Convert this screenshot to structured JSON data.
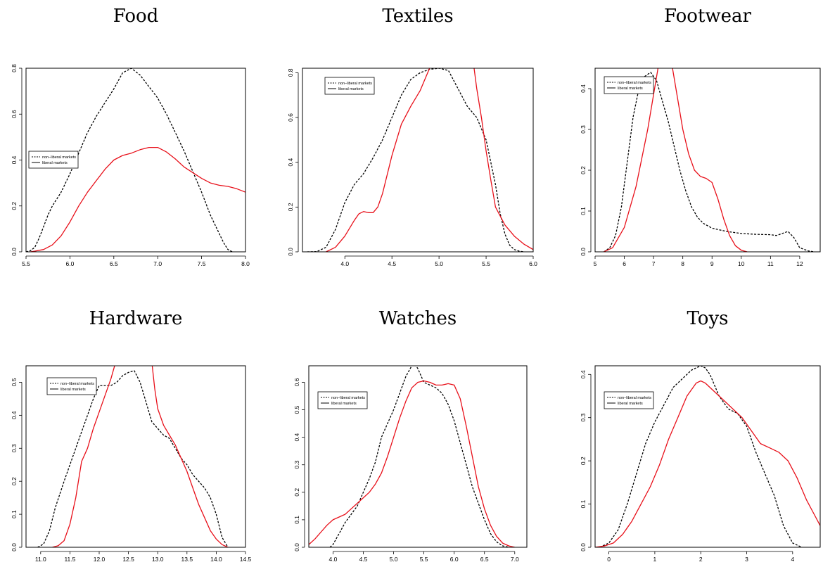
{
  "chart_data": [
    {
      "type": "line",
      "title": "Food",
      "xlim": [
        5.5,
        8.0
      ],
      "ylim": [
        0.0,
        0.8
      ],
      "xticks": [
        "5.5",
        "6.0",
        "6.5",
        "7.0",
        "7.5",
        "8.0"
      ],
      "yticks": [
        "0.0",
        "0.2",
        "0.4",
        "0.6",
        "0.8"
      ],
      "legend": {
        "placement": "left",
        "entries": [
          "non–liberal markets",
          "liberal markets"
        ]
      },
      "series": [
        {
          "name": "non–liberal markets",
          "color": "#000000",
          "dash": true,
          "x": [
            5.5,
            5.55,
            5.6,
            5.65,
            5.7,
            5.75,
            5.8,
            5.9,
            6.0,
            6.1,
            6.2,
            6.3,
            6.4,
            6.5,
            6.6,
            6.7,
            6.8,
            6.9,
            7.0,
            7.1,
            7.2,
            7.3,
            7.4,
            7.5,
            7.6,
            7.7,
            7.75,
            7.8,
            7.85
          ],
          "y": [
            0.0,
            0.005,
            0.02,
            0.06,
            0.11,
            0.16,
            0.2,
            0.26,
            0.34,
            0.43,
            0.52,
            0.59,
            0.65,
            0.71,
            0.78,
            0.8,
            0.77,
            0.72,
            0.67,
            0.6,
            0.52,
            0.44,
            0.35,
            0.26,
            0.16,
            0.08,
            0.04,
            0.01,
            0.0
          ]
        },
        {
          "name": "liberal markets",
          "color": "#e8101a",
          "dash": false,
          "x": [
            5.55,
            5.6,
            5.7,
            5.8,
            5.9,
            6.0,
            6.1,
            6.2,
            6.3,
            6.4,
            6.5,
            6.6,
            6.7,
            6.8,
            6.9,
            7.0,
            7.1,
            7.2,
            7.3,
            7.4,
            7.5,
            7.6,
            7.7,
            7.8,
            7.9,
            8.0
          ],
          "y": [
            0.0,
            0.003,
            0.01,
            0.03,
            0.07,
            0.13,
            0.2,
            0.26,
            0.31,
            0.36,
            0.4,
            0.42,
            0.43,
            0.445,
            0.455,
            0.455,
            0.435,
            0.405,
            0.37,
            0.345,
            0.32,
            0.3,
            0.29,
            0.285,
            0.275,
            0.26
          ]
        }
      ]
    },
    {
      "type": "line",
      "title": "Textiles",
      "xlim": [
        3.55,
        6.0
      ],
      "ylim": [
        0.0,
        0.82
      ],
      "xticks": [
        "4.0",
        "4.5",
        "5.0",
        "5.5",
        "6.0"
      ],
      "yticks": [
        "0.0",
        "0.2",
        "0.4",
        "0.6",
        "0.8"
      ],
      "legend": {
        "placement": "top-left",
        "entries": [
          "non–liberal markets",
          "liberal markets"
        ]
      },
      "series": [
        {
          "name": "non–liberal markets",
          "color": "#000000",
          "dash": true,
          "x": [
            3.6,
            3.7,
            3.8,
            3.9,
            4.0,
            4.1,
            4.2,
            4.3,
            4.4,
            4.5,
            4.6,
            4.7,
            4.8,
            4.9,
            5.0,
            5.1,
            5.2,
            5.3,
            5.4,
            5.5,
            5.6,
            5.65,
            5.7,
            5.75,
            5.8,
            5.85,
            5.9
          ],
          "y": [
            0.0,
            0.001,
            0.02,
            0.1,
            0.22,
            0.3,
            0.35,
            0.42,
            0.5,
            0.6,
            0.7,
            0.77,
            0.8,
            0.815,
            0.82,
            0.81,
            0.73,
            0.65,
            0.6,
            0.5,
            0.3,
            0.17,
            0.08,
            0.03,
            0.01,
            0.003,
            0.0
          ]
        },
        {
          "name": "liberal markets",
          "color": "#e8101a",
          "dash": false,
          "x": [
            3.8,
            3.9,
            4.0,
            4.1,
            4.15,
            4.2,
            4.25,
            4.3,
            4.35,
            4.4,
            4.5,
            4.6,
            4.7,
            4.8,
            4.85,
            4.9,
            4.93,
            5.36,
            5.4,
            5.45,
            5.5,
            5.55,
            5.6,
            5.7,
            5.8,
            5.9,
            6.0
          ],
          "y": [
            0.0,
            0.02,
            0.07,
            0.14,
            0.17,
            0.18,
            0.175,
            0.175,
            0.2,
            0.26,
            0.43,
            0.57,
            0.65,
            0.72,
            0.77,
            0.82,
            0.86,
            0.86,
            0.73,
            0.6,
            0.45,
            0.32,
            0.2,
            0.12,
            0.07,
            0.035,
            0.01
          ]
        }
      ]
    },
    {
      "type": "line",
      "title": "Footwear",
      "xlim": [
        5.0,
        12.7
      ],
      "ylim": [
        0.0,
        0.45
      ],
      "xticks": [
        "5",
        "6",
        "7",
        "8",
        "9",
        "10",
        "11",
        "12"
      ],
      "yticks": [
        "0.0",
        "0.1",
        "0.2",
        "0.3",
        "0.4"
      ],
      "legend": {
        "placement": "top-left",
        "entries": [
          "non–liberal markets",
          "liberal markets"
        ]
      },
      "series": [
        {
          "name": "non–liberal markets",
          "color": "#000000",
          "dash": true,
          "x": [
            5.3,
            5.5,
            5.7,
            5.9,
            6.1,
            6.3,
            6.5,
            6.7,
            6.9,
            7.1,
            7.3,
            7.5,
            7.7,
            7.9,
            8.1,
            8.3,
            8.5,
            8.7,
            9.0,
            9.5,
            10.0,
            10.5,
            11.0,
            11.2,
            11.4,
            11.6,
            11.8,
            12.0,
            12.3,
            12.5
          ],
          "y": [
            0.0,
            0.01,
            0.04,
            0.11,
            0.22,
            0.33,
            0.4,
            0.43,
            0.44,
            0.42,
            0.37,
            0.32,
            0.26,
            0.2,
            0.15,
            0.11,
            0.085,
            0.07,
            0.058,
            0.05,
            0.045,
            0.043,
            0.042,
            0.04,
            0.045,
            0.05,
            0.035,
            0.01,
            0.002,
            0.0
          ]
        },
        {
          "name": "liberal markets",
          "color": "#e8101a",
          "dash": false,
          "x": [
            5.3,
            5.6,
            6.0,
            6.4,
            6.8,
            7.2,
            7.6,
            8.0,
            8.2,
            8.4,
            8.6,
            8.8,
            9.0,
            9.2,
            9.4,
            9.6,
            9.8,
            10.0,
            10.2
          ],
          "y": [
            0.0,
            0.01,
            0.06,
            0.16,
            0.3,
            0.47,
            0.47,
            0.3,
            0.24,
            0.2,
            0.185,
            0.18,
            0.17,
            0.13,
            0.08,
            0.04,
            0.015,
            0.004,
            0.0
          ]
        }
      ]
    },
    {
      "type": "line",
      "title": "Hardware",
      "xlim": [
        10.75,
        14.5
      ],
      "ylim": [
        0.0,
        0.55
      ],
      "xticks": [
        "11.0",
        "11.5",
        "12.0",
        "12.5",
        "13.0",
        "13.5",
        "14.0",
        "14.5"
      ],
      "yticks": [
        "0.0",
        "0.1",
        "0.2",
        "0.3",
        "0.4",
        "0.5"
      ],
      "legend": {
        "placement": "top-left",
        "entries": [
          "non–liberal markets",
          "liberal markets"
        ]
      },
      "series": [
        {
          "name": "non–liberal markets",
          "color": "#000000",
          "dash": true,
          "x": [
            10.95,
            11.05,
            11.15,
            11.25,
            11.4,
            11.5,
            11.6,
            11.7,
            11.8,
            11.9,
            12.0,
            12.1,
            12.2,
            12.3,
            12.4,
            12.5,
            12.6,
            12.7,
            12.8,
            12.9,
            13.0,
            13.1,
            13.2,
            13.3,
            13.4,
            13.5,
            13.6,
            13.7,
            13.8,
            13.9,
            14.0,
            14.1,
            14.2
          ],
          "y": [
            0.0,
            0.01,
            0.05,
            0.12,
            0.2,
            0.25,
            0.3,
            0.35,
            0.4,
            0.45,
            0.49,
            0.49,
            0.49,
            0.5,
            0.52,
            0.53,
            0.535,
            0.5,
            0.44,
            0.38,
            0.36,
            0.34,
            0.33,
            0.3,
            0.27,
            0.25,
            0.22,
            0.2,
            0.18,
            0.15,
            0.1,
            0.03,
            0.0
          ]
        },
        {
          "name": "liberal markets",
          "color": "#e8101a",
          "dash": false,
          "x": [
            11.2,
            11.3,
            11.4,
            11.5,
            11.6,
            11.7,
            11.8,
            11.9,
            12.0,
            12.1,
            12.2,
            12.28,
            12.9,
            12.95,
            13.0,
            13.1,
            13.2,
            13.3,
            13.4,
            13.5,
            13.6,
            13.7,
            13.8,
            13.9,
            14.0,
            14.1,
            14.2
          ],
          "y": [
            0.0,
            0.005,
            0.02,
            0.07,
            0.15,
            0.26,
            0.3,
            0.36,
            0.41,
            0.46,
            0.51,
            0.56,
            0.56,
            0.48,
            0.42,
            0.37,
            0.34,
            0.31,
            0.27,
            0.23,
            0.18,
            0.13,
            0.09,
            0.05,
            0.025,
            0.008,
            0.0
          ]
        }
      ]
    },
    {
      "type": "line",
      "title": "Watches",
      "xlim": [
        3.6,
        7.2
      ],
      "ylim": [
        0.0,
        0.66
      ],
      "xticks": [
        "4.0",
        "4.5",
        "5.0",
        "5.5",
        "6.0",
        "6.5",
        "7.0"
      ],
      "yticks": [
        "0.0",
        "0.1",
        "0.2",
        "0.3",
        "0.4",
        "0.5",
        "0.6"
      ],
      "legend": {
        "placement": "top-left",
        "entries": [
          "non–liberal markets",
          "liberal markets"
        ]
      },
      "series": [
        {
          "name": "non–liberal markets",
          "color": "#000000",
          "dash": true,
          "x": [
            3.95,
            4.0,
            4.1,
            4.2,
            4.3,
            4.4,
            4.5,
            4.6,
            4.7,
            4.8,
            4.9,
            5.0,
            5.1,
            5.2,
            5.3,
            5.35,
            5.4,
            5.5,
            5.6,
            5.7,
            5.8,
            5.9,
            6.0,
            6.1,
            6.2,
            6.3,
            6.4,
            6.5,
            6.6,
            6.7,
            6.8,
            6.9
          ],
          "y": [
            0.0,
            0.01,
            0.05,
            0.09,
            0.12,
            0.15,
            0.2,
            0.25,
            0.31,
            0.4,
            0.45,
            0.5,
            0.56,
            0.62,
            0.66,
            0.665,
            0.65,
            0.6,
            0.59,
            0.58,
            0.56,
            0.52,
            0.46,
            0.38,
            0.3,
            0.22,
            0.16,
            0.1,
            0.05,
            0.02,
            0.005,
            0.0
          ]
        },
        {
          "name": "liberal markets",
          "color": "#e8101a",
          "dash": false,
          "x": [
            3.6,
            3.7,
            3.8,
            3.9,
            4.0,
            4.1,
            4.2,
            4.3,
            4.4,
            4.5,
            4.6,
            4.7,
            4.8,
            4.9,
            5.0,
            5.1,
            5.2,
            5.3,
            5.4,
            5.5,
            5.6,
            5.7,
            5.8,
            5.9,
            6.0,
            6.1,
            6.2,
            6.3,
            6.4,
            6.5,
            6.6,
            6.7,
            6.8,
            6.9,
            7.0
          ],
          "y": [
            0.01,
            0.03,
            0.055,
            0.08,
            0.1,
            0.11,
            0.12,
            0.14,
            0.16,
            0.18,
            0.2,
            0.23,
            0.27,
            0.33,
            0.4,
            0.47,
            0.53,
            0.58,
            0.6,
            0.605,
            0.6,
            0.59,
            0.59,
            0.595,
            0.59,
            0.54,
            0.44,
            0.33,
            0.22,
            0.14,
            0.08,
            0.04,
            0.015,
            0.005,
            0.0
          ]
        }
      ]
    },
    {
      "type": "line",
      "title": "Toys",
      "xlim": [
        -0.3,
        4.6
      ],
      "ylim": [
        0.0,
        0.42
      ],
      "xticks": [
        "0",
        "1",
        "2",
        "3",
        "4"
      ],
      "yticks": [
        "0.0",
        "0.1",
        "0.2",
        "0.3",
        "0.4"
      ],
      "legend": {
        "placement": "top-left",
        "entries": [
          "non–liberal markets",
          "liberal markets"
        ]
      },
      "series": [
        {
          "name": "non–liberal markets",
          "color": "#000000",
          "dash": true,
          "x": [
            -0.2,
            0.0,
            0.2,
            0.4,
            0.6,
            0.8,
            1.0,
            1.2,
            1.4,
            1.6,
            1.8,
            2.0,
            2.1,
            2.2,
            2.4,
            2.6,
            2.8,
            3.0,
            3.2,
            3.4,
            3.6,
            3.8,
            4.0,
            4.2
          ],
          "y": [
            0.0,
            0.01,
            0.04,
            0.1,
            0.17,
            0.24,
            0.29,
            0.33,
            0.37,
            0.39,
            0.41,
            0.42,
            0.415,
            0.4,
            0.35,
            0.32,
            0.31,
            0.28,
            0.22,
            0.17,
            0.12,
            0.05,
            0.01,
            0.0
          ]
        },
        {
          "name": "liberal markets",
          "color": "#e8101a",
          "dash": false,
          "x": [
            -0.3,
            -0.1,
            0.1,
            0.3,
            0.5,
            0.7,
            0.9,
            1.1,
            1.3,
            1.5,
            1.7,
            1.9,
            2.0,
            2.1,
            2.3,
            2.5,
            2.7,
            2.9,
            3.1,
            3.3,
            3.5,
            3.7,
            3.9,
            4.1,
            4.3,
            4.5,
            4.6
          ],
          "y": [
            0.0,
            0.003,
            0.01,
            0.03,
            0.06,
            0.1,
            0.14,
            0.19,
            0.25,
            0.3,
            0.35,
            0.38,
            0.385,
            0.38,
            0.36,
            0.34,
            0.32,
            0.3,
            0.27,
            0.24,
            0.23,
            0.22,
            0.2,
            0.16,
            0.11,
            0.07,
            0.05
          ]
        }
      ]
    }
  ]
}
